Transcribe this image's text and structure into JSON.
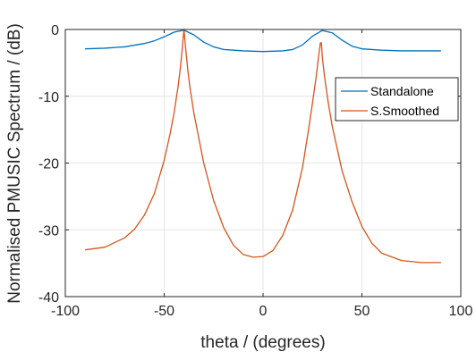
{
  "chart_data": {
    "type": "line",
    "xlabel": "theta / (degrees)",
    "ylabel": "Normalised PMUSIC Spectrum / (dB)",
    "xlim": [
      -100,
      100
    ],
    "ylim": [
      -40,
      0
    ],
    "xticks": [
      -100,
      -50,
      0,
      50,
      100
    ],
    "yticks": [
      -40,
      -30,
      -20,
      -10,
      0
    ],
    "xtick_labels": [
      "-100",
      "-50",
      "0",
      "50",
      "100"
    ],
    "ytick_labels": [
      "-40",
      "-30",
      "-20",
      "-10",
      "0"
    ],
    "grid": true,
    "legend_position": "top-right",
    "series": [
      {
        "name": "Standalone",
        "color": "#0072BD",
        "x": [
          -90,
          -80,
          -70,
          -60,
          -55,
          -50,
          -45,
          -40,
          -35,
          -30,
          -25,
          -20,
          -10,
          0,
          10,
          15,
          20,
          25,
          30,
          35,
          40,
          45,
          50,
          60,
          70,
          80,
          90
        ],
        "y": [
          -2.9,
          -2.8,
          -2.6,
          -2.1,
          -1.7,
          -1.1,
          -0.4,
          -0.1,
          -0.8,
          -1.9,
          -2.6,
          -3.0,
          -3.2,
          -3.3,
          -3.2,
          -3.0,
          -2.3,
          -1.0,
          -0.15,
          -0.5,
          -1.6,
          -2.5,
          -2.9,
          -3.1,
          -3.2,
          -3.2,
          -3.2
        ]
      },
      {
        "name": "S.Smoothed",
        "color": "#D95319",
        "x": [
          -90,
          -80,
          -70,
          -65,
          -60,
          -55,
          -50,
          -47,
          -45,
          -43,
          -42,
          -41,
          -40,
          -39,
          -38,
          -37,
          -35,
          -30,
          -25,
          -20,
          -15,
          -10,
          -5,
          0,
          5,
          10,
          15,
          20,
          23,
          25,
          27,
          28,
          29,
          29.5,
          30,
          31,
          32,
          33,
          35,
          40,
          45,
          50,
          55,
          60,
          70,
          80,
          90
        ],
        "y": [
          -33.0,
          -32.6,
          -31.2,
          -29.9,
          -27.8,
          -24.6,
          -19.6,
          -15.6,
          -12.5,
          -8.6,
          -6.2,
          -3.3,
          0.0,
          -3.3,
          -6.2,
          -8.6,
          -12.5,
          -20.0,
          -25.6,
          -29.6,
          -32.3,
          -33.7,
          -34.1,
          -34.0,
          -33.1,
          -30.8,
          -27.0,
          -20.6,
          -15.0,
          -11.0,
          -6.8,
          -4.2,
          -2.0,
          -2.0,
          -4.2,
          -6.8,
          -9.0,
          -11.0,
          -14.5,
          -21.2,
          -25.8,
          -29.5,
          -32.0,
          -33.5,
          -34.6,
          -34.9,
          -34.9
        ]
      }
    ]
  }
}
